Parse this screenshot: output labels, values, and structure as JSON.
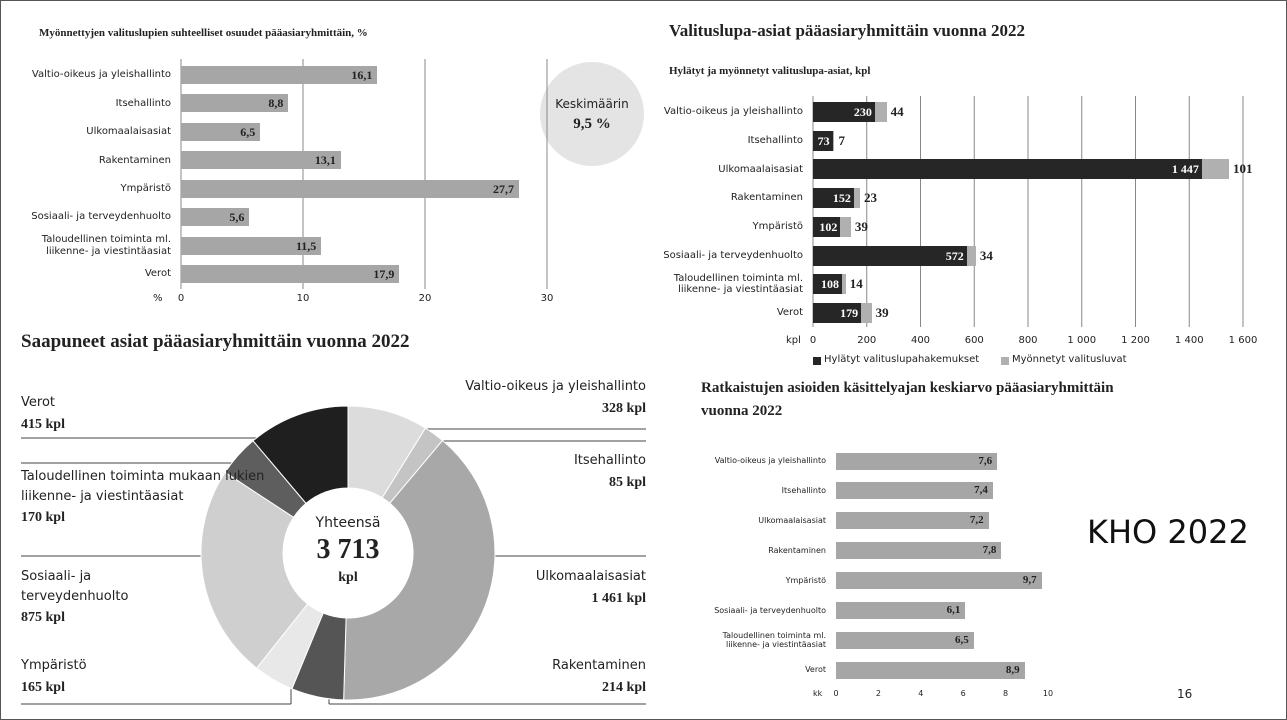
{
  "chart_data": [
    {
      "type": "hbar",
      "title": "Myönnettyjen valituslupien suhteelliset osuudet pääasiaryhmittäin, %",
      "categories": [
        "Valtio-oikeus ja yleishallinto",
        "Itsehallinto",
        "Ulkomaalaisasiat",
        "Rakentaminen",
        "Ympäristö",
        "Sosiaali- ja terveydenhuolto",
        "Taloudellinen toiminta ml. liikenne- ja viestintäasiat",
        "Verot"
      ],
      "values": [
        16.1,
        8.8,
        6.5,
        13.1,
        27.7,
        5.6,
        11.5,
        17.9
      ],
      "value_labels": [
        "16,1",
        "8,8",
        "6,5",
        "13,1",
        "27,7",
        "5,6",
        "11,5",
        "17,9"
      ],
      "color": "#a6a6a6",
      "xlim": [
        0,
        30
      ],
      "xticks": [
        0,
        10,
        20,
        30
      ],
      "xlabel": "%",
      "grid": true,
      "annotation": {
        "label": "Keskimäärin",
        "text": "9,5 %"
      }
    },
    {
      "type": "stacked_hbar",
      "title": "Valituslupa-asiat pääasiaryhmittäin vuonna 2022",
      "subtitle": "Hylätyt ja myönnetyt valituslupa-asiat, kpl",
      "categories": [
        "Valtio-oikeus ja yleishallinto",
        "Itsehallinto",
        "Ulkomaalaisasiat",
        "Rakentaminen",
        "Ympäristö",
        "Sosiaali- ja terveydenhuolto",
        "Taloudellinen toiminta ml. liikenne- ja viestintäasiat",
        "Verot"
      ],
      "series": [
        {
          "name": "Hylätyt valituslupahakemukset",
          "color": "#262626",
          "values": [
            230,
            73,
            1447,
            152,
            102,
            572,
            108,
            179
          ],
          "value_labels": [
            "230",
            "73",
            "1 447",
            "152",
            "102",
            "572",
            "108",
            "179"
          ]
        },
        {
          "name": "Myönnetyt valitusluvat",
          "color": "#b0b0b0",
          "values": [
            44,
            7,
            101,
            23,
            39,
            34,
            14,
            39
          ]
        }
      ],
      "xlim": [
        0,
        1600
      ],
      "xticks": [
        0,
        200,
        400,
        600,
        800,
        {
          "value": 1000,
          "label": "1 000"
        },
        {
          "value": 1200,
          "label": "1 200"
        },
        {
          "value": 1400,
          "label": "1 400"
        },
        {
          "value": 1600,
          "label": "1 600"
        }
      ],
      "xlabel": "kpl",
      "grid": true,
      "legend": "bottom"
    },
    {
      "type": "donut",
      "title": "Saapuneet asiat pääasiaryhmittäin vuonna 2022",
      "categories": [
        "Valtio-oikeus ja yleishallinto",
        "Itsehallinto",
        "Ulkomaalaisasiat",
        "Rakentaminen",
        "Ympäristö",
        "Sosiaali- ja terveydenhuolto",
        "Taloudellinen toiminta mukaan lukien liikenne- ja viestintäasiat",
        "Verot"
      ],
      "values": [
        328,
        85,
        1461,
        214,
        165,
        875,
        170,
        415
      ],
      "value_labels": [
        "328 kpl",
        "85 kpl",
        "1 461 kpl",
        "214 kpl",
        "165 kpl",
        "875 kpl",
        "170 kpl",
        "415 kpl"
      ],
      "colors": [
        "#dcdcdc",
        "#c4c4c4",
        "#a8a8a8",
        "#555555",
        "#e8e8e8",
        "#cfcfcf",
        "#5e5e5e",
        "#1f1f1f"
      ],
      "center_label": "Yhteensä",
      "total": {
        "value": 3713,
        "label": "3 713"
      },
      "unit": "kpl"
    },
    {
      "type": "hbar",
      "title": "Ratkaistujen asioiden käsittelyajan keskiarvo pääasiaryhmittäin vuonna 2022",
      "categories": [
        "Valtio-oikeus ja yleishallinto",
        "Itsehallinto",
        "Ulkomaalaisasiat",
        "Rakentaminen",
        "Ympäristö",
        "Sosiaali- ja terveydenhuolto",
        "Taloudellinen toiminta ml. liikenne- ja viestintäasiat",
        "Verot"
      ],
      "values": [
        7.6,
        7.4,
        7.2,
        7.8,
        9.7,
        6.1,
        6.5,
        8.9
      ],
      "value_labels": [
        "7,6",
        "7,4",
        "7,2",
        "7,8",
        "9,7",
        "6,1",
        "6,5",
        "8,9"
      ],
      "color": "#a6a6a6",
      "xlim": [
        0,
        10
      ],
      "xticks": [
        0,
        2,
        4,
        6,
        8,
        10
      ],
      "xlabel": "kk",
      "grid": false
    }
  ],
  "footer": {
    "brand": "KHO 2022",
    "page": "16"
  }
}
